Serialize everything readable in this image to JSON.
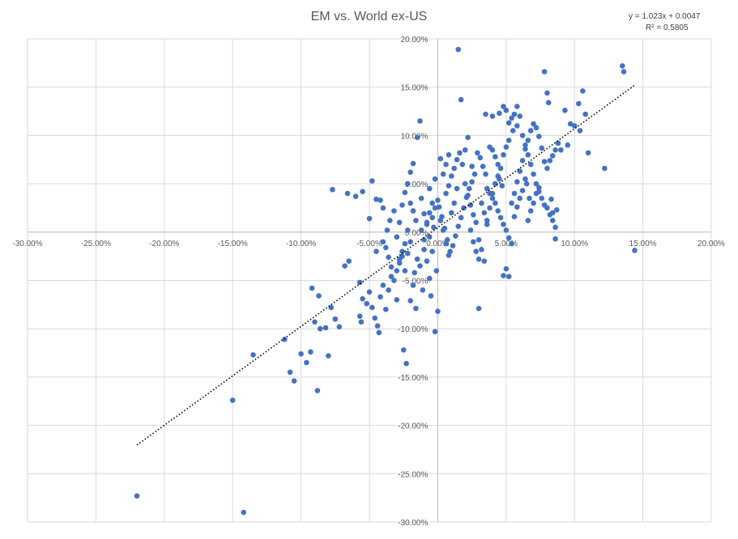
{
  "chart_data": {
    "type": "scatter",
    "title": "EM vs. World ex-US",
    "xlabel": "",
    "ylabel": "",
    "xlim": [
      -0.3,
      0.2
    ],
    "ylim": [
      -0.3,
      0.2
    ],
    "x_ticks": [
      -0.3,
      -0.25,
      -0.2,
      -0.15,
      -0.1,
      -0.05,
      0.0,
      0.05,
      0.1,
      0.15,
      0.2
    ],
    "y_ticks": [
      -0.3,
      -0.25,
      -0.2,
      -0.15,
      -0.1,
      -0.05,
      0.0,
      0.05,
      0.1,
      0.15,
      0.2
    ],
    "x_tick_labels": [
      "-30.00%",
      "-25.00%",
      "-20.00%",
      "-15.00%",
      "-10.00%",
      "-5.00%",
      "0.00%",
      "5.00%",
      "10.00%",
      "15.00%",
      "20.00%"
    ],
    "y_tick_labels": [
      "-30.00%",
      "-25.00%",
      "-20.00%",
      "-15.00%",
      "-10.00%",
      "-5.00%",
      "0.00%",
      "5.00%",
      "10.00%",
      "15.00%",
      "20.00%"
    ],
    "grid": true,
    "marker_color": "#4472C4",
    "trendline": {
      "type": "linear",
      "slope": 1.023,
      "intercept": 0.0047,
      "x_range": [
        -0.22,
        0.144
      ],
      "style": "dotted",
      "color": "#000000",
      "equation_label": "y = 1.023x + 0.0047",
      "r2_label": "R² = 0.5805"
    },
    "points": [
      [
        -0.22,
        -0.273
      ],
      [
        -0.142,
        -0.29
      ],
      [
        -0.15,
        -0.174
      ],
      [
        -0.088,
        -0.164
      ],
      [
        -0.135,
        -0.127
      ],
      [
        -0.112,
        -0.111
      ],
      [
        -0.108,
        -0.145
      ],
      [
        -0.105,
        -0.154
      ],
      [
        -0.1,
        -0.126
      ],
      [
        -0.096,
        -0.135
      ],
      [
        -0.093,
        -0.124
      ],
      [
        -0.09,
        -0.093
      ],
      [
        -0.086,
        -0.1
      ],
      [
        -0.092,
        -0.058
      ],
      [
        -0.087,
        -0.066
      ],
      [
        -0.078,
        -0.078
      ],
      [
        -0.082,
        -0.099
      ],
      [
        -0.08,
        -0.128
      ],
      [
        -0.075,
        -0.09
      ],
      [
        -0.072,
        -0.098
      ],
      [
        -0.068,
        -0.035
      ],
      [
        -0.065,
        -0.03
      ],
      [
        -0.077,
        0.044
      ],
      [
        -0.066,
        0.04
      ],
      [
        -0.06,
        0.037
      ],
      [
        -0.055,
        0.042
      ],
      [
        -0.05,
        0.014
      ],
      [
        -0.048,
        0.053
      ],
      [
        -0.045,
        0.034
      ],
      [
        -0.042,
        0.033
      ],
      [
        -0.04,
        0.025
      ],
      [
        -0.057,
        -0.052
      ],
      [
        -0.055,
        -0.069
      ],
      [
        -0.057,
        -0.087
      ],
      [
        -0.056,
        -0.093
      ],
      [
        -0.052,
        -0.074
      ],
      [
        -0.05,
        -0.062
      ],
      [
        -0.048,
        -0.078
      ],
      [
        -0.046,
        -0.089
      ],
      [
        -0.044,
        -0.097
      ],
      [
        -0.043,
        -0.104
      ],
      [
        -0.042,
        -0.067
      ],
      [
        -0.04,
        -0.055
      ],
      [
        -0.038,
        -0.08
      ],
      [
        -0.036,
        -0.06
      ],
      [
        -0.034,
        -0.046
      ],
      [
        -0.03,
        -0.07
      ],
      [
        -0.028,
        -0.032
      ],
      [
        -0.026,
        -0.025
      ],
      [
        -0.024,
        -0.04
      ],
      [
        -0.022,
        -0.022
      ],
      [
        -0.02,
        -0.01
      ],
      [
        -0.018,
        -0.055
      ],
      [
        -0.017,
        -0.042
      ],
      [
        -0.015,
        -0.028
      ],
      [
        -0.013,
        -0.035
      ],
      [
        -0.011,
        -0.06
      ],
      [
        -0.01,
        -0.018
      ],
      [
        -0.008,
        -0.03
      ],
      [
        -0.006,
        -0.048
      ],
      [
        -0.005,
        -0.066
      ],
      [
        -0.004,
        -0.02
      ],
      [
        -0.003,
        0.005
      ],
      [
        -0.001,
        -0.04
      ],
      [
        0.0,
        -0.082
      ],
      [
        -0.002,
        -0.103
      ],
      [
        -0.025,
        -0.122
      ],
      [
        -0.023,
        -0.136
      ],
      [
        -0.02,
        -0.071
      ],
      [
        -0.016,
        -0.079
      ],
      [
        -0.045,
        -0.02
      ],
      [
        -0.04,
        -0.01
      ],
      [
        -0.037,
        0.002
      ],
      [
        -0.035,
        0.012
      ],
      [
        -0.032,
        0.022
      ],
      [
        -0.03,
        -0.005
      ],
      [
        -0.028,
        0.01
      ],
      [
        -0.026,
        0.028
      ],
      [
        -0.024,
        0.041
      ],
      [
        -0.022,
        0.05
      ],
      [
        -0.02,
        0.062
      ],
      [
        -0.018,
        0.071
      ],
      [
        -0.015,
        0.098
      ],
      [
        -0.013,
        0.115
      ],
      [
        -0.012,
        0.035
      ],
      [
        -0.01,
        0.019
      ],
      [
        -0.008,
        0.008
      ],
      [
        -0.006,
        -0.005
      ],
      [
        -0.004,
        0.015
      ],
      [
        -0.002,
        0.025
      ],
      [
        0.0,
        0.033
      ],
      [
        0.002,
        0.012
      ],
      [
        0.004,
        0.002
      ],
      [
        0.006,
        -0.012
      ],
      [
        0.008,
        -0.024
      ],
      [
        0.01,
        0.02
      ],
      [
        0.012,
        0.03
      ],
      [
        0.014,
        0.045
      ],
      [
        0.015,
        0.189
      ],
      [
        0.017,
        0.137
      ],
      [
        0.018,
        0.07
      ],
      [
        0.02,
        0.085
      ],
      [
        0.022,
        0.098
      ],
      [
        0.02,
        0.05
      ],
      [
        0.022,
        0.038
      ],
      [
        0.024,
        0.028
      ],
      [
        0.026,
        0.018
      ],
      [
        0.028,
        0.01
      ],
      [
        0.03,
        -0.008
      ],
      [
        0.032,
        -0.018
      ],
      [
        0.034,
        -0.03
      ],
      [
        0.036,
        0.008
      ],
      [
        0.038,
        0.025
      ],
      [
        0.04,
        0.04
      ],
      [
        0.042,
        0.05
      ],
      [
        0.044,
        0.058
      ],
      [
        0.046,
        0.066
      ],
      [
        0.048,
        0.08
      ],
      [
        0.05,
        0.088
      ],
      [
        0.052,
        0.095
      ],
      [
        0.054,
        0.118
      ],
      [
        0.056,
        0.122
      ],
      [
        0.058,
        0.13
      ],
      [
        0.06,
        0.12
      ],
      [
        0.062,
        0.1
      ],
      [
        0.064,
        0.09
      ],
      [
        0.066,
        0.08
      ],
      [
        0.068,
        0.07
      ],
      [
        0.07,
        0.06
      ],
      [
        0.072,
        0.05
      ],
      [
        0.074,
        0.042
      ],
      [
        0.076,
        0.035
      ],
      [
        0.078,
        0.028
      ],
      [
        0.08,
        0.025
      ],
      [
        0.082,
        0.018
      ],
      [
        0.084,
        0.012
      ],
      [
        0.086,
        0.005
      ],
      [
        0.03,
        -0.079
      ],
      [
        0.048,
        -0.045
      ],
      [
        0.05,
        -0.038
      ],
      [
        0.052,
        -0.046
      ],
      [
        0.054,
        0.03
      ],
      [
        0.056,
        0.04
      ],
      [
        0.058,
        0.052
      ],
      [
        0.06,
        0.063
      ],
      [
        0.062,
        0.074
      ],
      [
        0.064,
        0.086
      ],
      [
        0.066,
        0.095
      ],
      [
        0.068,
        0.105
      ],
      [
        0.07,
        0.112
      ],
      [
        0.072,
        0.108
      ],
      [
        0.074,
        0.099
      ],
      [
        0.076,
        0.087
      ],
      [
        0.078,
        0.073
      ],
      [
        0.08,
        0.066
      ],
      [
        0.082,
        0.074
      ],
      [
        0.084,
        0.079
      ],
      [
        0.086,
        0.085
      ],
      [
        0.088,
        0.092
      ],
      [
        0.09,
        0.085
      ],
      [
        0.093,
        0.126
      ],
      [
        0.095,
        0.09
      ],
      [
        0.097,
        0.112
      ],
      [
        0.1,
        0.11
      ],
      [
        0.103,
        0.133
      ],
      [
        0.104,
        0.105
      ],
      [
        0.106,
        0.146
      ],
      [
        0.108,
        0.122
      ],
      [
        0.11,
        0.082
      ],
      [
        0.122,
        0.066
      ],
      [
        0.135,
        0.172
      ],
      [
        0.136,
        0.166
      ],
      [
        0.144,
        -0.019
      ],
      [
        0.08,
        0.144
      ],
      [
        0.078,
        0.166
      ],
      [
        0.081,
        0.134
      ],
      [
        0.083,
        0.034
      ],
      [
        0.084,
        0.02
      ],
      [
        0.086,
        -0.007
      ],
      [
        0.087,
        0.023
      ],
      [
        0.035,
        0.122
      ],
      [
        0.04,
        0.12
      ],
      [
        0.045,
        0.123
      ],
      [
        0.048,
        0.13
      ],
      [
        0.05,
        0.126
      ],
      [
        0.052,
        0.113
      ],
      [
        0.055,
        0.105
      ],
      [
        0.058,
        0.11
      ],
      [
        0.038,
        0.088
      ],
      [
        0.04,
        0.085
      ],
      [
        0.042,
        0.078
      ],
      [
        0.044,
        0.07
      ],
      [
        0.035,
        0.06
      ],
      [
        0.033,
        0.068
      ],
      [
        0.031,
        0.077
      ],
      [
        0.029,
        0.082
      ],
      [
        0.027,
        0.06
      ],
      [
        0.025,
        0.052
      ],
      [
        0.023,
        0.045
      ],
      [
        0.021,
        0.036
      ],
      [
        0.019,
        0.025
      ],
      [
        0.017,
        0.015
      ],
      [
        0.015,
        0.006
      ],
      [
        0.013,
        -0.004
      ],
      [
        0.011,
        -0.014
      ],
      [
        0.009,
        -0.02
      ],
      [
        0.007,
        -0.008
      ],
      [
        0.005,
        0.004
      ],
      [
        0.003,
        0.016
      ],
      [
        0.001,
        0.026
      ],
      [
        0.006,
        0.04
      ],
      [
        0.008,
        0.048
      ],
      [
        0.01,
        0.058
      ],
      [
        0.012,
        0.066
      ],
      [
        0.014,
        0.075
      ],
      [
        0.016,
        0.082
      ],
      [
        0.036,
        0.045
      ],
      [
        0.038,
        0.04
      ],
      [
        0.04,
        0.035
      ],
      [
        0.042,
        0.03
      ],
      [
        0.044,
        0.022
      ],
      [
        0.046,
        0.015
      ],
      [
        0.048,
        0.008
      ],
      [
        0.05,
        0.002
      ],
      [
        0.052,
        -0.006
      ],
      [
        0.054,
        -0.012
      ],
      [
        0.056,
        0.016
      ],
      [
        0.058,
        0.026
      ],
      [
        0.06,
        0.035
      ],
      [
        0.062,
        0.043
      ],
      [
        0.064,
        0.055
      ],
      [
        0.066,
        0.012
      ],
      [
        0.068,
        0.022
      ],
      [
        0.07,
        0.03
      ],
      [
        0.072,
        0.04
      ],
      [
        0.074,
        0.046
      ],
      [
        -0.012,
        0.002
      ],
      [
        -0.01,
        -0.008
      ],
      [
        -0.008,
        0.01
      ],
      [
        -0.006,
        0.02
      ],
      [
        -0.004,
        0.03
      ],
      [
        -0.016,
        0.012
      ],
      [
        -0.018,
        0.022
      ],
      [
        -0.02,
        0.03
      ],
      [
        -0.022,
        0.002
      ],
      [
        -0.024,
        -0.012
      ],
      [
        -0.026,
        -0.02
      ],
      [
        -0.028,
        -0.028
      ],
      [
        -0.03,
        -0.04
      ],
      [
        -0.032,
        -0.05
      ],
      [
        -0.034,
        -0.036
      ],
      [
        -0.036,
        -0.026
      ],
      [
        -0.038,
        -0.016
      ],
      [
        0.004,
        0.06
      ],
      [
        0.006,
        0.07
      ],
      [
        0.008,
        0.08
      ],
      [
        0.002,
        0.076
      ],
      [
        -0.002,
        0.055
      ],
      [
        -0.006,
        0.045
      ],
      [
        0.024,
        0.002
      ],
      [
        0.026,
        -0.01
      ],
      [
        0.028,
        -0.02
      ],
      [
        0.03,
        -0.028
      ],
      [
        0.032,
        0.03
      ],
      [
        0.034,
        0.02
      ],
      [
        0.036,
        0.012
      ],
      [
        0.025,
        0.068
      ],
      [
        0.045,
        0.055
      ],
      [
        0.047,
        0.048
      ],
      [
        0.065,
        0.05
      ],
      [
        0.067,
        0.035
      ]
    ]
  }
}
